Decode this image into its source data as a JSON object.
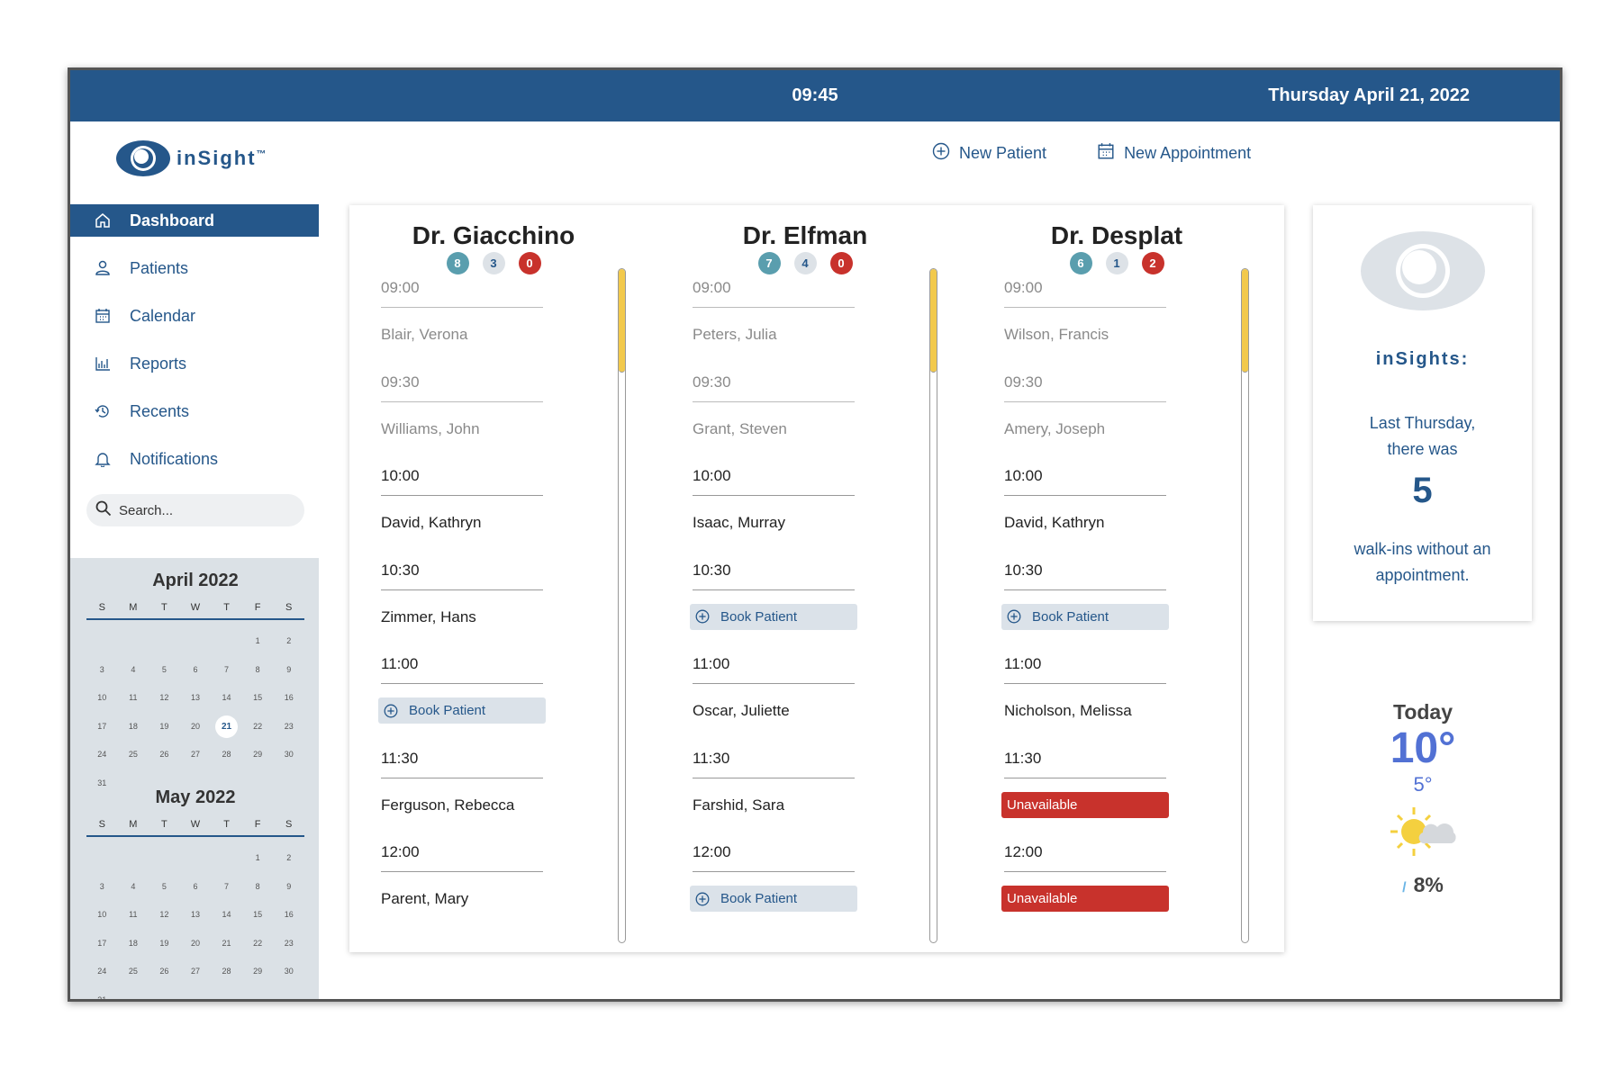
{
  "header": {
    "time": "09:45",
    "date": "Thursday April 21, 2022"
  },
  "brand": {
    "name": "inSight",
    "tm": "™"
  },
  "nav": [
    {
      "label": "Dashboard",
      "icon": "home-icon",
      "active": true
    },
    {
      "label": "Patients",
      "icon": "person-icon"
    },
    {
      "label": "Calendar",
      "icon": "calendar-icon"
    },
    {
      "label": "Reports",
      "icon": "bar-chart-icon"
    },
    {
      "label": "Recents",
      "icon": "history-icon"
    },
    {
      "label": "Notifications",
      "icon": "bell-icon"
    }
  ],
  "search": {
    "placeholder": "Search..."
  },
  "calendar": {
    "dow": [
      "S",
      "M",
      "T",
      "W",
      "T",
      "F",
      "S"
    ],
    "months": [
      {
        "title": "April 2022",
        "start": 5,
        "days": 31,
        "today": 21
      },
      {
        "title": "May 2022",
        "start": 5,
        "days": 31,
        "today": null
      }
    ]
  },
  "actions": {
    "new_patient": "New Patient",
    "new_appointment": "New Appointment"
  },
  "colors": {
    "primary": "#25578a",
    "teal": "#5a9eae",
    "red": "#c8322c",
    "scroll_thumb": "#f2c94c",
    "weather": "#5271d4"
  },
  "doctors": [
    {
      "name": "Dr. Giacchino",
      "badges": [
        "8",
        "3",
        "0"
      ],
      "slots": [
        {
          "time": "09:00",
          "kind": "patient",
          "text": "Blair, Verona",
          "past": true
        },
        {
          "time": "09:30",
          "kind": "patient",
          "text": "Williams, John",
          "past": true
        },
        {
          "time": "10:00",
          "kind": "patient",
          "text": "David, Kathryn"
        },
        {
          "time": "10:30",
          "kind": "patient",
          "text": "Zimmer, Hans"
        },
        {
          "time": "11:00",
          "kind": "book",
          "text": "Book Patient"
        },
        {
          "time": "11:30",
          "kind": "patient",
          "text": "Ferguson, Rebecca"
        },
        {
          "time": "12:00",
          "kind": "patient",
          "text": "Parent, Mary"
        }
      ]
    },
    {
      "name": "Dr. Elfman",
      "badges": [
        "7",
        "4",
        "0"
      ],
      "slots": [
        {
          "time": "09:00",
          "kind": "patient",
          "text": "Peters, Julia",
          "past": true
        },
        {
          "time": "09:30",
          "kind": "patient",
          "text": "Grant, Steven",
          "past": true
        },
        {
          "time": "10:00",
          "kind": "patient",
          "text": "Isaac, Murray"
        },
        {
          "time": "10:30",
          "kind": "book",
          "text": "Book Patient"
        },
        {
          "time": "11:00",
          "kind": "patient",
          "text": "Oscar, Juliette"
        },
        {
          "time": "11:30",
          "kind": "patient",
          "text": "Farshid, Sara"
        },
        {
          "time": "12:00",
          "kind": "book",
          "text": "Book Patient"
        }
      ]
    },
    {
      "name": "Dr. Desplat",
      "badges": [
        "6",
        "1",
        "2"
      ],
      "slots": [
        {
          "time": "09:00",
          "kind": "patient",
          "text": "Wilson, Francis",
          "past": true
        },
        {
          "time": "09:30",
          "kind": "patient",
          "text": "Amery, Joseph",
          "past": true
        },
        {
          "time": "10:00",
          "kind": "patient",
          "text": "David, Kathryn"
        },
        {
          "time": "10:30",
          "kind": "book",
          "text": "Book Patient"
        },
        {
          "time": "11:00",
          "kind": "patient",
          "text": "Nicholson, Melissa"
        },
        {
          "time": "11:30",
          "kind": "unavailable",
          "text": "Unavailable"
        },
        {
          "time": "12:00",
          "kind": "unavailable",
          "text": "Unavailable"
        }
      ]
    }
  ],
  "insights": {
    "title": "inSights:",
    "line1": "Last Thursday,",
    "line1b": "there was",
    "count": "5",
    "line2": "walk-ins without an",
    "line2b": "appointment."
  },
  "weather": {
    "label": "Today",
    "high": "10°",
    "low": "5°",
    "icon": "partly-sunny-icon",
    "rain": "8%"
  }
}
